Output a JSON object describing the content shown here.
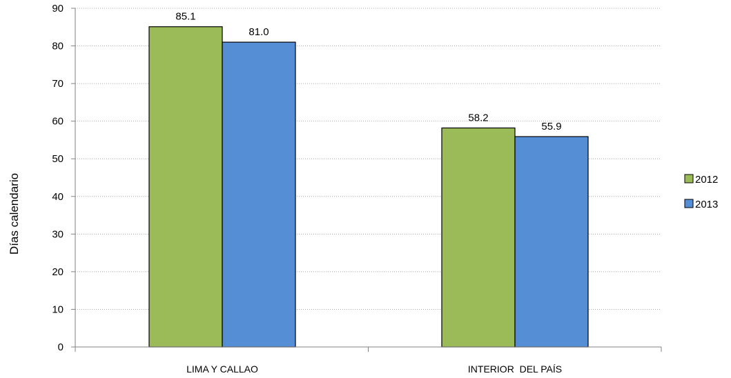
{
  "chart_data": {
    "type": "bar",
    "categories": [
      "LIMA Y CALLAO",
      "INTERIOR  DEL PAÍS"
    ],
    "series": [
      {
        "name": "2012",
        "values": [
          85.1,
          58.2
        ],
        "color": "#9BBB59"
      },
      {
        "name": "2013",
        "values": [
          81.0,
          55.9
        ],
        "color": "#558ED5"
      }
    ],
    "data_labels": [
      [
        "85.1",
        "58.2"
      ],
      [
        "81.0",
        "55.9"
      ]
    ],
    "ylabel": "Días calendario",
    "xlabel": "",
    "ylim": [
      0,
      90
    ],
    "yticks": [
      0,
      10,
      20,
      30,
      40,
      50,
      60,
      70,
      80,
      90
    ],
    "grid": "horizontal dotted",
    "legend": "right"
  }
}
